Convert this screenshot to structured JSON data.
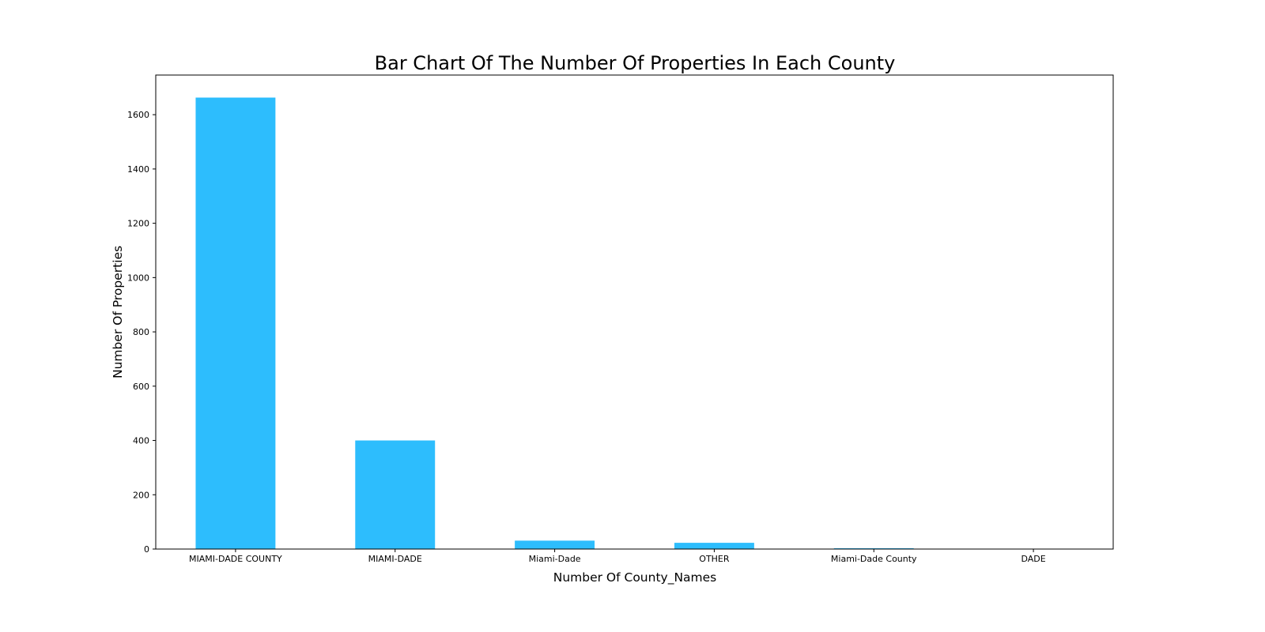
{
  "chart_data": {
    "type": "bar",
    "title": "Bar Chart Of The Number Of Properties In Each County",
    "xlabel": "Number Of County_Names",
    "ylabel": "Number Of Properties",
    "categories": [
      "MIAMI-DADE COUNTY",
      "MIAMI-DADE",
      "Miami-Dade",
      "OTHER",
      "Miami-Dade County",
      "DADE"
    ],
    "values": [
      1663,
      400,
      31,
      23,
      3,
      1
    ],
    "ylim": [
      0,
      1746
    ],
    "yticks": [
      0,
      200,
      400,
      600,
      800,
      1000,
      1200,
      1400,
      1600
    ],
    "grid": false,
    "bar_color": "#2dbdfd"
  }
}
